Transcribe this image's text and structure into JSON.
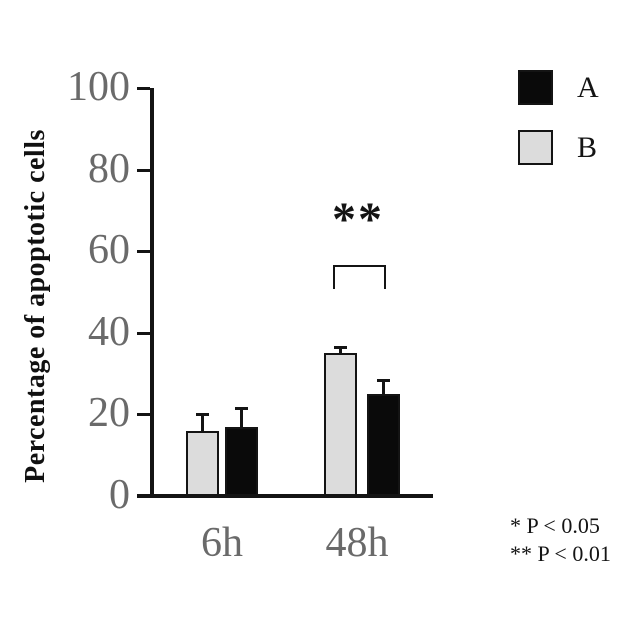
{
  "figure": {
    "background": "#ffffff"
  },
  "colors": {
    "series_a_fill": "#0a0a0a",
    "series_b_fill": "#dcdcdc",
    "bar_border": "#141414",
    "axis": "#141414",
    "tick_label": "#6a6a6a",
    "category_label": "#6a6a6a",
    "annotation": "#141414"
  },
  "legend": {
    "items": [
      {
        "label": "A",
        "color_key": "series_a_fill"
      },
      {
        "label": "B",
        "color_key": "series_b_fill"
      }
    ]
  },
  "significance": {
    "marker": "**",
    "group": "48h"
  },
  "footnotes": {
    "line1": "* P < 0.05",
    "line2": "** P < 0.01"
  },
  "chart_data": {
    "type": "bar",
    "title": "",
    "xlabel": "",
    "ylabel": "Percentage of apoptotic cells",
    "categories": [
      "6h",
      "48h"
    ],
    "series": [
      {
        "name": "B",
        "color_key": "series_b_fill",
        "values": [
          16,
          35
        ],
        "errors": [
          4,
          1.5
        ]
      },
      {
        "name": "A",
        "color_key": "series_a_fill",
        "values": [
          17,
          25
        ],
        "errors": [
          4.5,
          3.5
        ]
      }
    ],
    "ylim": [
      0,
      100
    ],
    "yticks": [
      0,
      20,
      40,
      60,
      80,
      100
    ],
    "grid": false,
    "error_bars": "upper-only",
    "bar_order_in_group": [
      "B",
      "A"
    ],
    "legend_position": "top-right",
    "significance": {
      "marker": "**",
      "group": "48h",
      "between": [
        "B",
        "A"
      ],
      "key": [
        "* P < 0.05",
        "** P < 0.01"
      ]
    }
  }
}
